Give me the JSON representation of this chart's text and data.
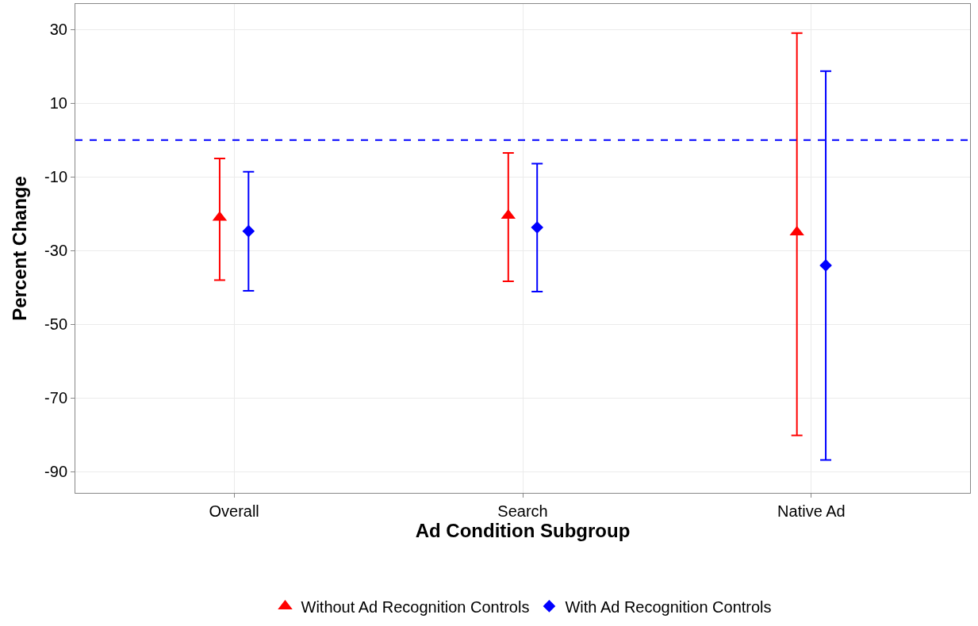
{
  "chart_data": {
    "type": "scatter",
    "xlabel": "Ad Condition Subgroup",
    "ylabel": "Percent Change",
    "categories": [
      "Overall",
      "Search",
      "Native Ad"
    ],
    "series": [
      {
        "name": "Without Ad Recognition Controls",
        "color": "#ff0000",
        "marker": "triangle",
        "values": [
          -21,
          -20.5,
          -25
        ],
        "errors": [
          [
            -38,
            -5
          ],
          [
            -38.3,
            -3.5
          ],
          [
            -80.1,
            29
          ]
        ]
      },
      {
        "name": "With Ad Recognition Controls",
        "color": "#0000ff",
        "marker": "diamond",
        "values": [
          -24.7,
          -23.7,
          -34
        ],
        "errors": [
          [
            -40.9,
            -8.6
          ],
          [
            -41.1,
            -6.4
          ],
          [
            -86.8,
            18.7
          ]
        ]
      }
    ],
    "ylim": [
      -95.7,
      36.9
    ],
    "yticks": [
      -90,
      -70,
      -50,
      -30,
      -10,
      10,
      30
    ],
    "ref_lines": [
      {
        "axis": "y",
        "value": 0,
        "color": "#0000ff",
        "line_style": "dashed"
      }
    ],
    "grid": true,
    "legend": "bottom"
  }
}
